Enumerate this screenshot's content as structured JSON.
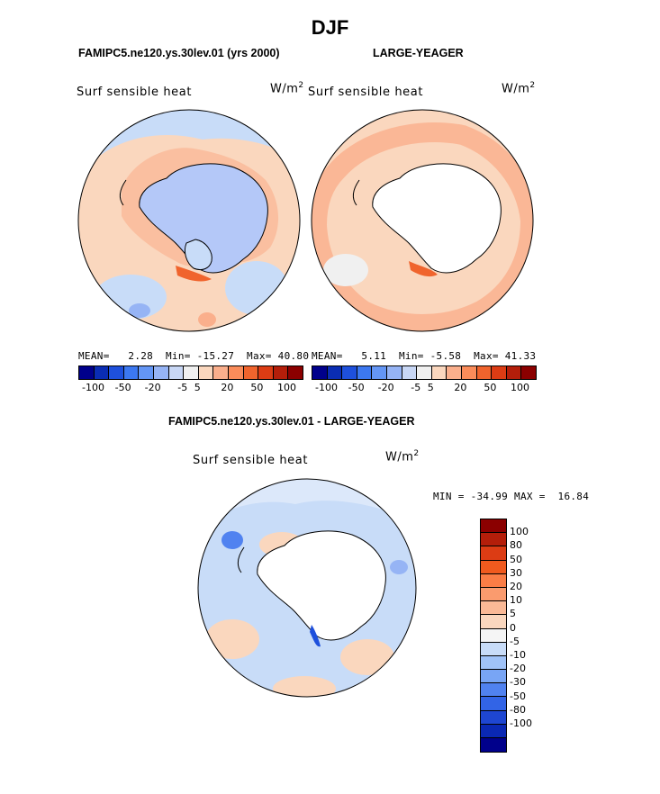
{
  "title": "DJF",
  "left_panel": {
    "heading": "FAMIPC5.ne120.ys.30lev.01 (yrs 2000)",
    "label": "Surf  sensible heat",
    "units": "W/m",
    "units_exp": "2",
    "mean_label": "MEAN=",
    "mean": "2.28",
    "min_label": "Min=",
    "min": "-15.27",
    "max_label": "Max=",
    "max": "40.80"
  },
  "right_panel": {
    "heading": "LARGE-YEAGER",
    "label": "Surf  sensible heat",
    "units": "W/m",
    "units_exp": "2",
    "mean_label": "MEAN=",
    "mean": "5.11",
    "min_label": "Min=",
    "min": "-5.58",
    "max_label": "Max=",
    "max": "41.33"
  },
  "diff_panel": {
    "heading": "FAMIPC5.ne120.ys.30lev.01 - LARGE-YEAGER",
    "label": "Surf  sensible heat",
    "units": "W/m",
    "units_exp": "2",
    "min_label": "MIN =",
    "min": "-34.99",
    "max_label": "MAX =",
    "max": "16.84"
  },
  "horizontal_colorbar": {
    "colors": [
      "#00008b",
      "#0a2db4",
      "#1e50dc",
      "#3c78f0",
      "#6496f5",
      "#96b4f5",
      "#c8d7f5",
      "#f0f0f0",
      "#fad7be",
      "#faaf8c",
      "#fa8c5a",
      "#f0642d",
      "#dc3c14",
      "#b41e0a",
      "#8b0000"
    ],
    "tick_labels": [
      "-100",
      "-50",
      "-20",
      "-5",
      "5",
      "20",
      "50",
      "100"
    ]
  },
  "vertical_colorbar": {
    "colors": [
      "#8b0000",
      "#b41e0a",
      "#dc3c14",
      "#f05a1e",
      "#fa7d46",
      "#fa9b6e",
      "#fab996",
      "#fad7be",
      "#f5f5f5",
      "#c8dcf8",
      "#a0c3f8",
      "#78a5f5",
      "#5082f0",
      "#3264e6",
      "#1e46d2",
      "#0a28b4",
      "#00008b"
    ],
    "tick_labels": [
      "100",
      "80",
      "50",
      "30",
      "20",
      "10",
      "5",
      "0",
      "-5",
      "-10",
      "-20",
      "-30",
      "-50",
      "-80",
      "-100"
    ]
  },
  "map_colors": {
    "ocean_pale_blue": "#c8dcf8",
    "ocean_neutral": "#f0f0f0",
    "warm_light": "#fad7be",
    "warm_mid": "#faaf8c",
    "warm_strong": "#f0642d",
    "cool_mid": "#96b4f5",
    "cool_strong": "#5082f0",
    "land_white": "#ffffff"
  }
}
